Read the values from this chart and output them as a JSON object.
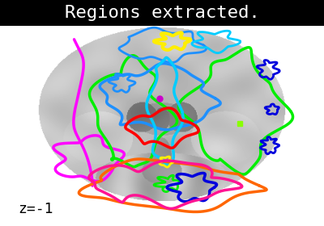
{
  "title": "Regions extracted.",
  "title_color": "#ffffff",
  "title_bg": "#000000",
  "title_fontsize": 16,
  "annotation": "z=-1",
  "annotation_fontsize": 13,
  "annotation_color": "#000000",
  "fig_width": 4.0,
  "fig_height": 2.8,
  "bg_color": "#ffffff",
  "lw": 2.0
}
